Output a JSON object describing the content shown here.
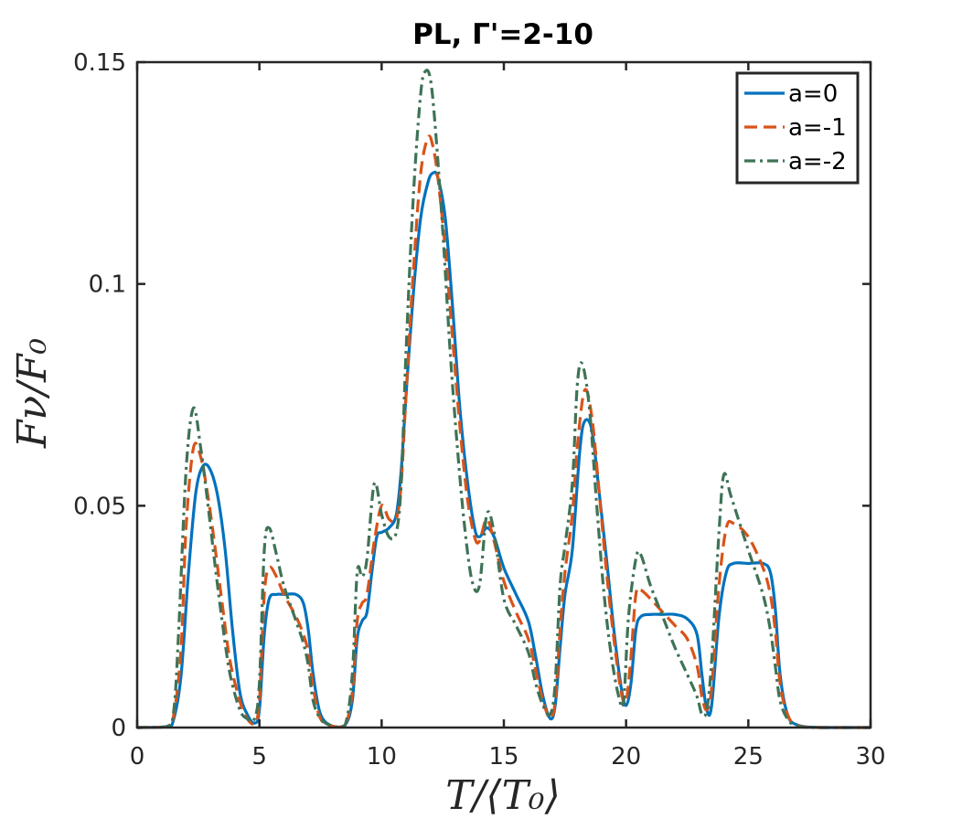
{
  "chart_data": {
    "type": "line",
    "title": "PL, Γ'=2-10",
    "xlabel": "T/⟨T₀⟩",
    "ylabel": "Fν/F₀",
    "xlim": [
      0,
      30
    ],
    "ylim": [
      0,
      0.15
    ],
    "xticks": [
      0,
      5,
      10,
      15,
      20,
      25,
      30
    ],
    "xtick_labels": [
      "0",
      "5",
      "10",
      "15",
      "20",
      "25",
      "30"
    ],
    "yticks": [
      0,
      0.05,
      0.1,
      0.15
    ],
    "ytick_labels": [
      "0",
      "0.05",
      "0.1",
      "0.15"
    ],
    "grid": false,
    "legend_position": "top-right",
    "series": [
      {
        "name": "a=0",
        "color": "#0072BD",
        "dash": "solid",
        "x": [
          0,
          1.2,
          1.5,
          1.8,
          2.1,
          2.4,
          2.7,
          3.0,
          3.3,
          3.6,
          3.9,
          4.2,
          4.5,
          4.8,
          5.0,
          5.2,
          5.4,
          5.7,
          6.0,
          6.5,
          6.8,
          7.0,
          7.2,
          7.5,
          8.0,
          8.5,
          8.8,
          9.0,
          9.2,
          9.4,
          9.6,
          9.8,
          10.0,
          10.3,
          10.6,
          10.8,
          11.0,
          11.3,
          11.6,
          11.9,
          12.1,
          12.3,
          12.6,
          12.9,
          13.2,
          13.5,
          13.8,
          14.0,
          14.3,
          14.6,
          15.0,
          15.5,
          16.0,
          16.3,
          16.6,
          16.9,
          17.1,
          17.3,
          17.5,
          17.8,
          18.1,
          18.3,
          18.6,
          18.9,
          19.2,
          19.5,
          19.8,
          20.0,
          20.2,
          20.4,
          20.6,
          21.0,
          21.5,
          22.0,
          22.5,
          22.9,
          23.1,
          23.3,
          23.5,
          23.8,
          24.1,
          24.4,
          25.0,
          25.6,
          25.9,
          26.1,
          26.3,
          26.6,
          27.0,
          28,
          30
        ],
        "y": [
          0,
          0.0002,
          0.002,
          0.012,
          0.035,
          0.053,
          0.059,
          0.058,
          0.052,
          0.04,
          0.022,
          0.008,
          0.003,
          0.001,
          0.004,
          0.021,
          0.029,
          0.03,
          0.03,
          0.03,
          0.028,
          0.022,
          0.012,
          0.003,
          0.0003,
          0.0005,
          0.006,
          0.02,
          0.024,
          0.026,
          0.035,
          0.043,
          0.044,
          0.045,
          0.048,
          0.058,
          0.075,
          0.098,
          0.115,
          0.123,
          0.125,
          0.124,
          0.115,
          0.095,
          0.072,
          0.056,
          0.045,
          0.043,
          0.045,
          0.043,
          0.036,
          0.03,
          0.024,
          0.016,
          0.007,
          0.002,
          0.005,
          0.018,
          0.03,
          0.04,
          0.062,
          0.069,
          0.067,
          0.053,
          0.038,
          0.022,
          0.009,
          0.005,
          0.01,
          0.022,
          0.025,
          0.0255,
          0.0255,
          0.0255,
          0.0245,
          0.021,
          0.012,
          0.004,
          0.005,
          0.025,
          0.035,
          0.037,
          0.037,
          0.037,
          0.035,
          0.027,
          0.012,
          0.003,
          0.0006,
          0,
          0
        ]
      },
      {
        "name": "a=-1",
        "color": "#D95319",
        "dash": "dashed",
        "x": [
          0,
          1.2,
          1.5,
          1.8,
          2.0,
          2.3,
          2.6,
          2.9,
          3.2,
          3.5,
          3.8,
          4.2,
          4.5,
          4.8,
          5.0,
          5.2,
          5.4,
          5.7,
          6.0,
          6.5,
          6.8,
          7.0,
          7.2,
          7.5,
          8.0,
          8.5,
          8.8,
          9.0,
          9.2,
          9.4,
          9.7,
          10.0,
          10.3,
          10.6,
          10.8,
          11.0,
          11.3,
          11.6,
          11.9,
          12.1,
          12.3,
          12.6,
          12.9,
          13.2,
          13.5,
          13.8,
          14.0,
          14.3,
          14.6,
          15.0,
          15.5,
          16.0,
          16.3,
          16.6,
          16.9,
          17.1,
          17.3,
          17.5,
          17.8,
          18.0,
          18.3,
          18.6,
          18.9,
          19.2,
          19.5,
          19.8,
          20.0,
          20.2,
          20.4,
          20.6,
          21.0,
          21.5,
          22.0,
          22.5,
          22.9,
          23.1,
          23.3,
          23.5,
          23.8,
          24.1,
          24.4,
          25.0,
          25.6,
          25.9,
          26.1,
          26.3,
          26.6,
          27.0,
          28,
          30
        ],
        "y": [
          0,
          0.0002,
          0.003,
          0.018,
          0.045,
          0.063,
          0.061,
          0.052,
          0.04,
          0.027,
          0.015,
          0.006,
          0.002,
          0.001,
          0.006,
          0.03,
          0.036,
          0.034,
          0.03,
          0.025,
          0.021,
          0.017,
          0.009,
          0.002,
          0.0003,
          0.0005,
          0.008,
          0.024,
          0.028,
          0.03,
          0.042,
          0.05,
          0.047,
          0.047,
          0.055,
          0.075,
          0.103,
          0.125,
          0.133,
          0.131,
          0.124,
          0.108,
          0.088,
          0.068,
          0.052,
          0.043,
          0.042,
          0.047,
          0.042,
          0.033,
          0.026,
          0.02,
          0.013,
          0.006,
          0.002,
          0.006,
          0.022,
          0.035,
          0.048,
          0.063,
          0.076,
          0.07,
          0.053,
          0.035,
          0.02,
          0.008,
          0.006,
          0.016,
          0.03,
          0.031,
          0.029,
          0.026,
          0.023,
          0.02,
          0.014,
          0.007,
          0.004,
          0.009,
          0.032,
          0.045,
          0.046,
          0.043,
          0.036,
          0.03,
          0.022,
          0.01,
          0.003,
          0.0005,
          0,
          0
        ]
      },
      {
        "name": "a=-2",
        "color": "#3E7356",
        "dash": "dashdot",
        "x": [
          0,
          1.2,
          1.5,
          1.7,
          2.0,
          2.3,
          2.6,
          2.9,
          3.2,
          3.5,
          3.8,
          4.2,
          4.5,
          4.8,
          5.0,
          5.2,
          5.4,
          5.7,
          6.0,
          6.5,
          6.8,
          7.0,
          7.2,
          7.5,
          8.0,
          8.5,
          8.8,
          9.0,
          9.2,
          9.4,
          9.7,
          10.0,
          10.3,
          10.6,
          10.8,
          11.0,
          11.3,
          11.6,
          11.8,
          12.0,
          12.2,
          12.5,
          12.8,
          13.1,
          13.4,
          13.7,
          14.0,
          14.3,
          14.6,
          15.0,
          15.5,
          16.0,
          16.3,
          16.6,
          16.9,
          17.1,
          17.3,
          17.5,
          17.8,
          18.0,
          18.2,
          18.5,
          18.8,
          19.1,
          19.4,
          19.7,
          19.9,
          20.1,
          20.4,
          20.6,
          21.0,
          21.5,
          22.0,
          22.5,
          22.9,
          23.1,
          23.3,
          23.5,
          23.8,
          24.0,
          24.3,
          25.0,
          25.6,
          25.9,
          26.1,
          26.3,
          26.6,
          27.0,
          28,
          30
        ],
        "y": [
          0,
          0.0002,
          0.004,
          0.022,
          0.058,
          0.072,
          0.063,
          0.05,
          0.036,
          0.023,
          0.012,
          0.004,
          0.002,
          0.002,
          0.01,
          0.04,
          0.045,
          0.039,
          0.032,
          0.024,
          0.019,
          0.014,
          0.006,
          0.002,
          0.0003,
          0.0005,
          0.012,
          0.035,
          0.034,
          0.038,
          0.055,
          0.048,
          0.043,
          0.044,
          0.055,
          0.085,
          0.12,
          0.143,
          0.148,
          0.146,
          0.135,
          0.112,
          0.085,
          0.063,
          0.045,
          0.033,
          0.032,
          0.048,
          0.044,
          0.029,
          0.023,
          0.017,
          0.01,
          0.005,
          0.003,
          0.01,
          0.032,
          0.041,
          0.055,
          0.077,
          0.082,
          0.072,
          0.05,
          0.03,
          0.016,
          0.007,
          0.006,
          0.025,
          0.038,
          0.039,
          0.032,
          0.025,
          0.018,
          0.012,
          0.007,
          0.003,
          0.004,
          0.015,
          0.044,
          0.057,
          0.052,
          0.04,
          0.03,
          0.022,
          0.014,
          0.006,
          0.002,
          0.0003,
          0,
          0
        ]
      }
    ]
  }
}
